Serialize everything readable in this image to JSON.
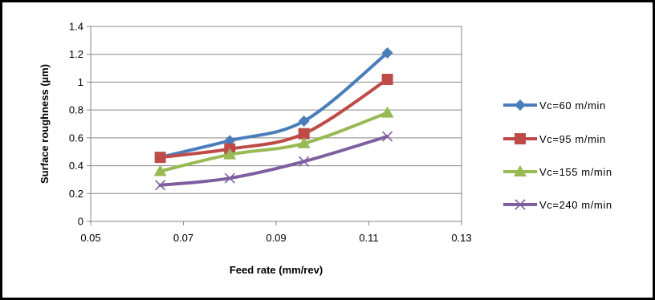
{
  "chart_data": {
    "type": "line",
    "xlabel": "Feed rate (mm/rev)",
    "ylabel": "Surface roughness (µm)",
    "xlim": [
      0.05,
      0.13
    ],
    "ylim": [
      0,
      1.4
    ],
    "xticks": [
      0.05,
      0.07,
      0.09,
      0.11,
      0.13
    ],
    "xtick_labels": [
      "0.05",
      "0.07",
      "0.09",
      "0.11",
      "0.13"
    ],
    "yticks": [
      0,
      0.2,
      0.4,
      0.6,
      0.8,
      1,
      1.2,
      1.4
    ],
    "ytick_labels": [
      "0",
      "0.2",
      "0.4",
      "0.6",
      "0.8",
      "1",
      "1.2",
      "1.4"
    ],
    "grid": "horizontal",
    "legend_position": "right",
    "series": [
      {
        "name": "Vc=60 m/min",
        "color": "#4a7ebb",
        "marker": "diamond",
        "x": [
          0.065,
          0.08,
          0.096,
          0.114
        ],
        "y": [
          0.46,
          0.58,
          0.72,
          1.21
        ]
      },
      {
        "name": "Vc=95 m/min",
        "color": "#be4b48",
        "marker": "square",
        "x": [
          0.065,
          0.08,
          0.096,
          0.114
        ],
        "y": [
          0.46,
          0.52,
          0.63,
          1.02
        ]
      },
      {
        "name": "Vc=155 m/min",
        "color": "#98b954",
        "marker": "triangle",
        "x": [
          0.065,
          0.08,
          0.096,
          0.114
        ],
        "y": [
          0.36,
          0.48,
          0.56,
          0.78
        ]
      },
      {
        "name": "Vc=240 m/min",
        "color": "#7d5fa0",
        "marker": "x",
        "x": [
          0.065,
          0.08,
          0.096,
          0.114
        ],
        "y": [
          0.26,
          0.31,
          0.43,
          0.61
        ]
      }
    ]
  }
}
